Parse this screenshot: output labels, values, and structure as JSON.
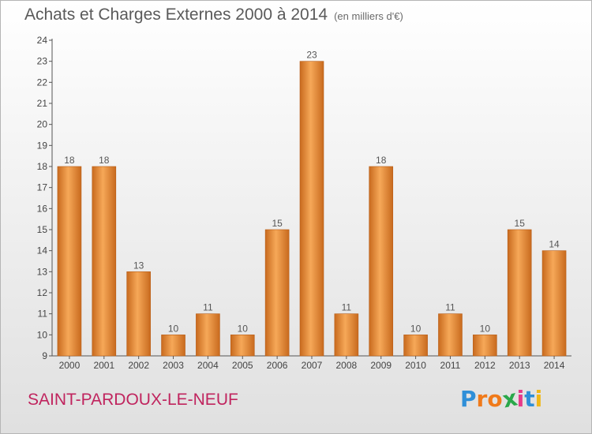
{
  "header": {
    "title": "Achats et Charges Externes 2000 à 2014",
    "subtitle": "(en milliers d'€)"
  },
  "footer": {
    "place": "SAINT-PARDOUX-LE-NEUF",
    "logo": "Proxiti"
  },
  "colors": {
    "bar_light": "#f6a858",
    "bar_dark": "#c86a1e",
    "place": "#c0245e",
    "logo_letters": [
      "#2f8fd8",
      "#f07a1a",
      "#f07a1a",
      "#2aa84a",
      "#e63b8a",
      "#2f8fd8",
      "#f0b81a"
    ]
  },
  "chart_data": {
    "type": "bar",
    "title": "Achats et Charges Externes 2000 à 2014",
    "subtitle": "(en milliers d'€)",
    "categories": [
      "2000",
      "2001",
      "2002",
      "2003",
      "2004",
      "2005",
      "2006",
      "2007",
      "2008",
      "2009",
      "2010",
      "2011",
      "2012",
      "2013",
      "2014"
    ],
    "values": [
      18,
      18,
      13,
      10,
      11,
      10,
      15,
      23,
      11,
      18,
      10,
      11,
      10,
      15,
      14
    ],
    "data_labels": [
      "18",
      "18",
      "13",
      "10",
      "11",
      "10",
      "15",
      "23",
      "11",
      "18",
      "10",
      "11",
      "10",
      "15",
      "14"
    ],
    "ylim": [
      9,
      24
    ],
    "yticks": [
      9,
      10,
      11,
      12,
      13,
      14,
      15,
      16,
      17,
      18,
      19,
      20,
      21,
      22,
      23,
      24
    ],
    "xlabel": "",
    "ylabel": "",
    "grid": false,
    "legend": "none"
  }
}
